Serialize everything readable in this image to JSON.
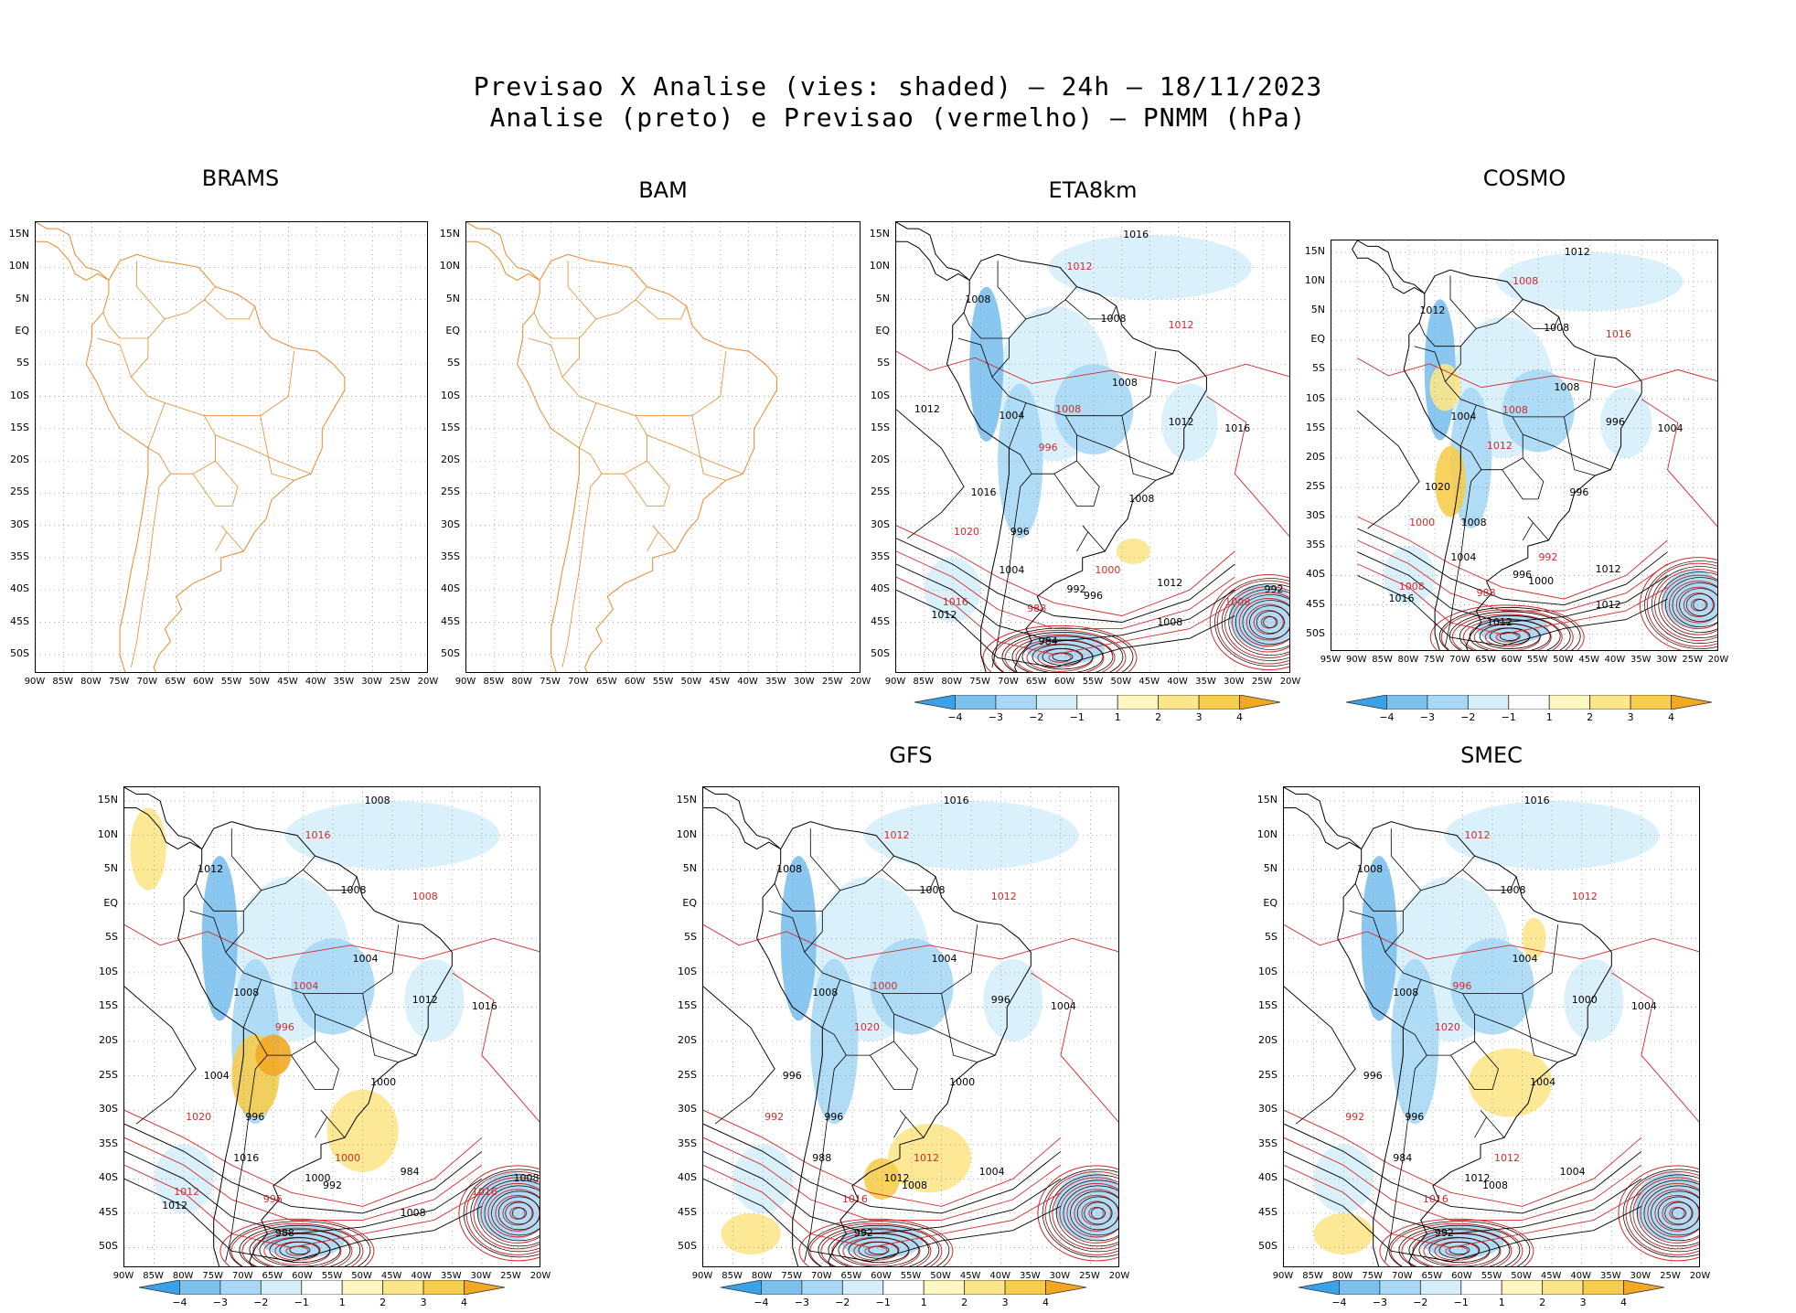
{
  "header": {
    "title_line1": "Previsao X Analise (vies: shaded) – 24h – 18/11/2023",
    "title_line2": "Analise (preto) e Previsao (vermelho) – PNMM (hPa)"
  },
  "colors": {
    "coast_orange": "#e8892c",
    "analysis_black": "#000000",
    "forecast_red": "#d22a2a",
    "bias_neg_4": "#3aa3e8",
    "bias_neg_3": "#7cc0ee",
    "bias_neg_2": "#a8d8f5",
    "bias_neg_1": "#d6f0fb",
    "bias_pos_1": "#fdf6c0",
    "bias_pos_2": "#fce68a",
    "bias_pos_3": "#f7cd4e",
    "bias_pos_4": "#f2a823"
  },
  "colorbar": {
    "labels": [
      "−4",
      "−3",
      "−2",
      "−1",
      "1",
      "2",
      "3",
      "4"
    ]
  },
  "panels": [
    {
      "title": "BRAMS",
      "lat_labels": [
        "15N",
        "10N",
        "5N",
        "EQ",
        "5S",
        "10S",
        "15S",
        "20S",
        "25S",
        "30S",
        "35S",
        "40S",
        "45S",
        "50S"
      ],
      "lon_labels": [
        "90W",
        "85W",
        "80W",
        "75W",
        "70W",
        "65W",
        "60W",
        "55W",
        "50W",
        "45W",
        "40W",
        "35W",
        "30W",
        "25W",
        "20W"
      ],
      "contour_labels": []
    },
    {
      "title": "BAM",
      "lat_labels": [
        "15N",
        "10N",
        "5N",
        "EQ",
        "5S",
        "10S",
        "15S",
        "20S",
        "25S",
        "30S",
        "35S",
        "40S",
        "45S",
        "50S"
      ],
      "lon_labels": [
        "90W",
        "85W",
        "80W",
        "75W",
        "70W",
        "65W",
        "60W",
        "55W",
        "50W",
        "45W",
        "40W",
        "35W",
        "30W",
        "25W",
        "20W"
      ],
      "contour_labels": []
    },
    {
      "title": "ETA8km",
      "lat_labels": [
        "15N",
        "10N",
        "5N",
        "EQ",
        "5S",
        "10S",
        "15S",
        "20S",
        "25S",
        "30S",
        "35S",
        "40S",
        "45S",
        "50S"
      ],
      "lon_labels": [
        "90W",
        "85W",
        "80W",
        "75W",
        "70W",
        "65W",
        "60W",
        "55W",
        "50W",
        "45W",
        "40W",
        "35W",
        "30W",
        "25W",
        "20W"
      ],
      "contour_labels": [
        "1016",
        "1012",
        "1008",
        "1008",
        "1012",
        "1008",
        "1004",
        "1008",
        "1012",
        "1016",
        "996",
        "1016",
        "1008",
        "1020",
        "996",
        "1004",
        "1000",
        "992",
        "996",
        "988",
        "984",
        "1012",
        "1016",
        "1012",
        "1008",
        "1008",
        "992",
        "1012"
      ]
    },
    {
      "title": "COSMO",
      "lat_labels": [
        "15N",
        "10N",
        "5N",
        "EQ",
        "5S",
        "10S",
        "15S",
        "20S",
        "25S",
        "30S",
        "35S",
        "40S",
        "45S",
        "50S"
      ],
      "lon_labels": [
        "95W",
        "90W",
        "85W",
        "80W",
        "75W",
        "70W",
        "65W",
        "60W",
        "55W",
        "50W",
        "45W",
        "40W",
        "35W",
        "30W",
        "25W",
        "20W"
      ],
      "contour_labels": [
        "1012",
        "1008",
        "1012",
        "1008",
        "1016",
        "1008",
        "1004",
        "1008",
        "996",
        "1004",
        "1012",
        "1020",
        "996",
        "1000",
        "1008",
        "1004",
        "992",
        "996",
        "1000",
        "988",
        "1012",
        "1012",
        "1008",
        "1016",
        "1012"
      ]
    },
    {
      "title": "",
      "lat_labels": [
        "15N",
        "10N",
        "5N",
        "EQ",
        "5S",
        "10S",
        "15S",
        "20S",
        "25S",
        "30S",
        "35S",
        "40S",
        "45S",
        "50S"
      ],
      "lon_labels": [
        "90W",
        "85W",
        "80W",
        "75W",
        "70W",
        "65W",
        "60W",
        "55W",
        "50W",
        "45W",
        "40W",
        "35W",
        "30W",
        "25W",
        "20W"
      ],
      "contour_labels": [
        "1008",
        "1016",
        "1012",
        "1008",
        "1008",
        "1004",
        "1008",
        "1004",
        "1012",
        "1016",
        "996",
        "1004",
        "1000",
        "1020",
        "996",
        "1016",
        "1000",
        "1000",
        "992",
        "996",
        "988",
        "984",
        "1012",
        "1012",
        "1008",
        "1016",
        "1008"
      ]
    },
    {
      "title": "GFS",
      "lat_labels": [
        "15N",
        "10N",
        "5N",
        "EQ",
        "5S",
        "10S",
        "15S",
        "20S",
        "25S",
        "30S",
        "35S",
        "40S",
        "45S",
        "50S"
      ],
      "lon_labels": [
        "90W",
        "85W",
        "80W",
        "75W",
        "70W",
        "65W",
        "60W",
        "55W",
        "50W",
        "45W",
        "40W",
        "35W",
        "30W",
        "25W",
        "20W"
      ],
      "contour_labels": [
        "1016",
        "1012",
        "1008",
        "1008",
        "1012",
        "1004",
        "1008",
        "1000",
        "996",
        "1004",
        "1020",
        "996",
        "1000",
        "992",
        "996",
        "988",
        "1012",
        "1012",
        "1008",
        "1016",
        "992",
        "1004"
      ]
    },
    {
      "title": "SMEC",
      "lat_labels": [
        "15N",
        "10N",
        "5N",
        "EQ",
        "5S",
        "10S",
        "15S",
        "20S",
        "25S",
        "30S",
        "35S",
        "40S",
        "45S",
        "50S"
      ],
      "lon_labels": [
        "90W",
        "85W",
        "80W",
        "75W",
        "70W",
        "65W",
        "60W",
        "55W",
        "50W",
        "45W",
        "40W",
        "35W",
        "30W",
        "25W",
        "20W"
      ],
      "contour_labels": [
        "1016",
        "1012",
        "1008",
        "1008",
        "1012",
        "1004",
        "1008",
        "996",
        "1000",
        "1004",
        "1020",
        "996",
        "1004",
        "992",
        "996",
        "984",
        "1012",
        "1012",
        "1008",
        "1016",
        "992",
        "1004"
      ]
    }
  ]
}
